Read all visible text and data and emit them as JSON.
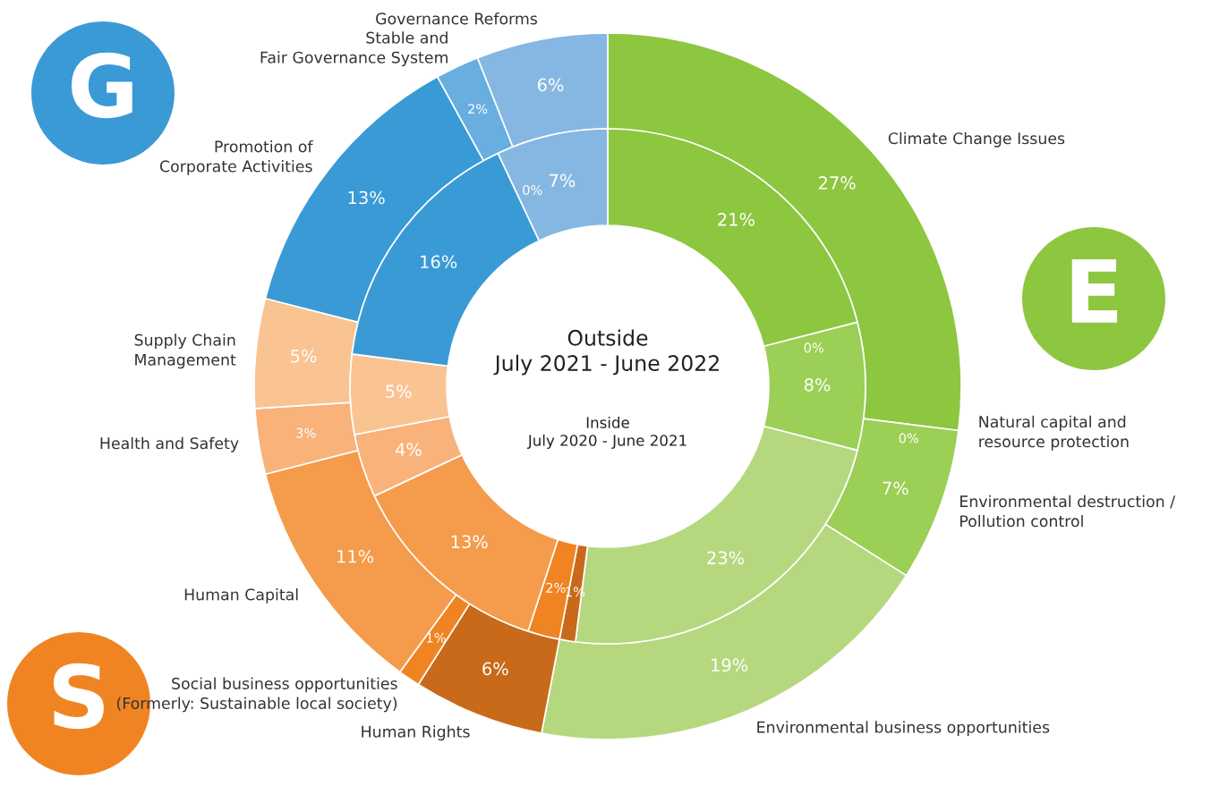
{
  "chart_data": {
    "type": "donut",
    "categories": [
      "Climate Change Issues",
      "Natural capital and\nresource protection",
      "Environmental destruction /\nPollution control",
      "Environmental business opportunities",
      "Human Rights",
      "Social business opportunities\n(Formerly: Sustainable local society)",
      "Human Capital",
      "Health and Safety",
      "Supply Chain\nManagement",
      "Promotion of\nCorporate Activities",
      "Stable and\nFair Governance System",
      "Governance Reforms"
    ],
    "colors": [
      "#8dc63f",
      "#9fd05e",
      "#9bcf55",
      "#b5d87f",
      "#c96a1a",
      "#f08423",
      "#f59b4c",
      "#f8b27a",
      "#fac392",
      "#3a9ad6",
      "#69aee0",
      "#86b7e2"
    ],
    "series": [
      {
        "values": [
          27,
          0,
          7,
          19,
          6,
          1,
          11,
          3,
          5,
          13,
          2,
          6
        ],
        "value_labels": [
          "27%",
          "0%",
          "7%",
          "19%",
          "6%",
          "1%",
          "11%",
          "3%",
          "5%",
          "13%",
          "2%",
          "6%"
        ]
      },
      {
        "values": [
          21,
          0,
          8,
          23,
          1,
          2,
          13,
          4,
          5,
          16,
          0,
          7
        ],
        "value_labels": [
          "21%",
          "0%",
          "8%",
          "23%",
          "1%",
          "2%",
          "13%",
          "4%",
          "5%",
          "16%",
          "0%",
          "7%"
        ]
      }
    ],
    "legend": false,
    "annotations": [
      "Outside\nJuly 2021 - June 2022",
      "Inside\nJuly 2020 - June 2021",
      "G",
      "E",
      "S"
    ]
  }
}
